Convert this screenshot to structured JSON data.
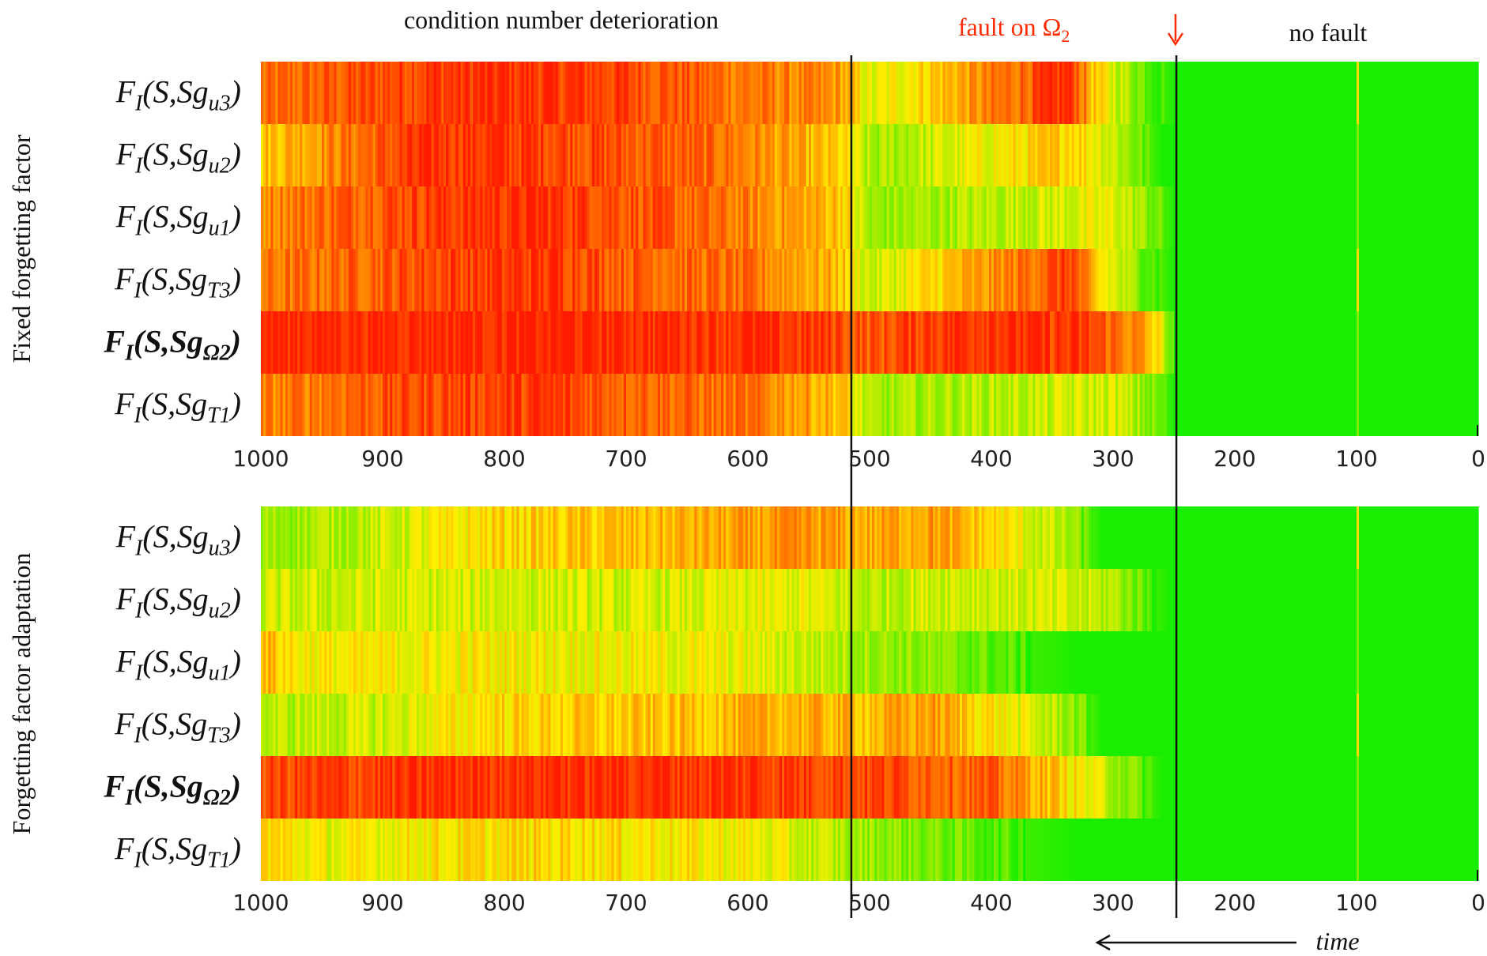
{
  "annotations": {
    "left_top": "condition number deterioration",
    "fault_prefix": "fault on ",
    "fault_symbol": "Ω",
    "fault_subscript": "2",
    "no_fault": "no fault",
    "time": "time"
  },
  "colors": {
    "fault_text": "#ff2a00",
    "highlight_label": "#ff3300",
    "normal_label": "#111111",
    "scale_low": "#00ee00",
    "scale_high": "#ff1a00"
  },
  "chart_data": [
    {
      "type": "heatmap",
      "title": "Fixed forgetting factor",
      "xlim": [
        1000,
        0
      ],
      "x_ticks": [
        "1000",
        "900",
        "800",
        "700",
        "600",
        "500",
        "400",
        "300",
        "200",
        "100",
        "0"
      ],
      "x_tick_values": [
        1000,
        900,
        800,
        700,
        600,
        500,
        400,
        300,
        200,
        100,
        0
      ],
      "marker_lines": [
        515,
        248
      ],
      "rows": [
        {
          "prefix": "F",
          "sub1": "I",
          "middle": "(S,Sg",
          "sub2": "u3",
          "suffix": ")",
          "bold": false,
          "highlight": false,
          "segments": [
            [
              1000,
              0.78
            ],
            [
              935,
              0.85
            ],
            [
              870,
              0.92
            ],
            [
              790,
              0.95
            ],
            [
              700,
              0.9
            ],
            [
              620,
              0.8
            ],
            [
              525,
              0.7
            ],
            [
              500,
              0.42
            ],
            [
              335,
              0.96
            ],
            [
              315,
              0.55
            ],
            [
              285,
              0.3
            ],
            [
              250,
              0.05
            ],
            [
              0,
              0.05
            ]
          ]
        },
        {
          "prefix": "F",
          "sub1": "I",
          "middle": "(S,Sg",
          "sub2": "u2",
          "suffix": ")",
          "bold": false,
          "highlight": false,
          "segments": [
            [
              1000,
              0.6
            ],
            [
              930,
              0.78
            ],
            [
              860,
              0.95
            ],
            [
              770,
              0.92
            ],
            [
              700,
              0.86
            ],
            [
              620,
              0.8
            ],
            [
              525,
              0.55
            ],
            [
              500,
              0.3
            ],
            [
              335,
              0.6
            ],
            [
              300,
              0.4
            ],
            [
              260,
              0.05
            ],
            [
              0,
              0.05
            ]
          ]
        },
        {
          "prefix": "F",
          "sub1": "I",
          "middle": "(S,Sg",
          "sub2": "u1",
          "suffix": ")",
          "bold": false,
          "highlight": false,
          "segments": [
            [
              1000,
              0.75
            ],
            [
              930,
              0.85
            ],
            [
              860,
              0.92
            ],
            [
              780,
              0.96
            ],
            [
              700,
              0.88
            ],
            [
              600,
              0.75
            ],
            [
              525,
              0.62
            ],
            [
              500,
              0.28
            ],
            [
              300,
              0.45
            ],
            [
              265,
              0.22
            ],
            [
              250,
              0.05
            ],
            [
              0,
              0.05
            ]
          ]
        },
        {
          "prefix": "F",
          "sub1": "I",
          "middle": "(S,Sg",
          "sub2": "T3",
          "suffix": ")",
          "bold": false,
          "highlight": false,
          "segments": [
            [
              1000,
              0.76
            ],
            [
              930,
              0.82
            ],
            [
              860,
              0.9
            ],
            [
              760,
              0.94
            ],
            [
              700,
              0.85
            ],
            [
              600,
              0.78
            ],
            [
              525,
              0.62
            ],
            [
              500,
              0.38
            ],
            [
              335,
              0.92
            ],
            [
              315,
              0.55
            ],
            [
              285,
              0.3
            ],
            [
              250,
              0.05
            ],
            [
              0,
              0.05
            ]
          ]
        },
        {
          "prefix": "F",
          "sub1": "I",
          "middle": "(S,Sg",
          "sub2": "Ω2",
          "suffix": ")",
          "bold": true,
          "highlight": false,
          "segments": [
            [
              1000,
              0.98
            ],
            [
              860,
              0.99
            ],
            [
              700,
              0.98
            ],
            [
              600,
              0.96
            ],
            [
              525,
              0.9
            ],
            [
              500,
              0.85
            ],
            [
              450,
              0.94
            ],
            [
              400,
              0.97
            ],
            [
              320,
              0.9
            ],
            [
              280,
              0.72
            ],
            [
              260,
              0.45
            ],
            [
              250,
              0.05
            ],
            [
              0,
              0.05
            ]
          ]
        },
        {
          "prefix": "F",
          "sub1": "I",
          "middle": "(S,Sg",
          "sub2": "T1",
          "suffix": ")",
          "bold": false,
          "highlight": false,
          "segments": [
            [
              1000,
              0.74
            ],
            [
              920,
              0.84
            ],
            [
              850,
              0.9
            ],
            [
              770,
              0.92
            ],
            [
              700,
              0.85
            ],
            [
              600,
              0.78
            ],
            [
              525,
              0.62
            ],
            [
              500,
              0.3
            ],
            [
              300,
              0.42
            ],
            [
              265,
              0.22
            ],
            [
              250,
              0.05
            ],
            [
              0,
              0.05
            ]
          ]
        }
      ]
    },
    {
      "type": "heatmap",
      "title": "Forgetting factor adaptation",
      "xlim": [
        1000,
        0
      ],
      "x_ticks": [
        "1000",
        "900",
        "800",
        "700",
        "600",
        "500",
        "400",
        "300",
        "200",
        "100",
        "0"
      ],
      "x_tick_values": [
        1000,
        900,
        800,
        700,
        600,
        500,
        400,
        300,
        200,
        100,
        0
      ],
      "marker_lines": [
        515,
        248
      ],
      "rows": [
        {
          "prefix": "F",
          "sub1": "I",
          "middle": "(S,Sg",
          "sub2": "u3",
          "suffix": ")",
          "bold": false,
          "highlight": false,
          "segments": [
            [
              1000,
              0.3
            ],
            [
              900,
              0.38
            ],
            [
              810,
              0.55
            ],
            [
              700,
              0.6
            ],
            [
              560,
              0.7
            ],
            [
              500,
              0.65
            ],
            [
              450,
              0.7
            ],
            [
              400,
              0.55
            ],
            [
              335,
              0.3
            ],
            [
              310,
              0.05
            ],
            [
              0,
              0.05
            ]
          ]
        },
        {
          "prefix": "F",
          "sub1": "I",
          "middle": "(S,Sg",
          "sub2": "u2",
          "suffix": ")",
          "bold": false,
          "highlight": false,
          "segments": [
            [
              1000,
              0.38
            ],
            [
              900,
              0.4
            ],
            [
              800,
              0.42
            ],
            [
              700,
              0.4
            ],
            [
              560,
              0.45
            ],
            [
              500,
              0.35
            ],
            [
              450,
              0.42
            ],
            [
              350,
              0.4
            ],
            [
              300,
              0.35
            ],
            [
              255,
              0.05
            ],
            [
              0,
              0.05
            ]
          ]
        },
        {
          "prefix": "F",
          "sub1": "I",
          "middle": "(S,Sg",
          "sub2": "u1",
          "suffix": ")",
          "bold": false,
          "highlight": false,
          "segments": [
            [
              1000,
              0.65
            ],
            [
              970,
              0.5
            ],
            [
              900,
              0.48
            ],
            [
              800,
              0.5
            ],
            [
              700,
              0.48
            ],
            [
              600,
              0.45
            ],
            [
              500,
              0.32
            ],
            [
              420,
              0.22
            ],
            [
              330,
              0.05
            ],
            [
              0,
              0.05
            ]
          ]
        },
        {
          "prefix": "F",
          "sub1": "I",
          "middle": "(S,Sg",
          "sub2": "T3",
          "suffix": ")",
          "bold": false,
          "highlight": false,
          "segments": [
            [
              1000,
              0.35
            ],
            [
              900,
              0.4
            ],
            [
              810,
              0.55
            ],
            [
              700,
              0.58
            ],
            [
              560,
              0.65
            ],
            [
              500,
              0.62
            ],
            [
              450,
              0.7
            ],
            [
              400,
              0.52
            ],
            [
              335,
              0.3
            ],
            [
              310,
              0.05
            ],
            [
              0,
              0.05
            ]
          ]
        },
        {
          "prefix": "F",
          "sub1": "I",
          "middle": "(S,Sg",
          "sub2": "Ω2",
          "suffix": ")",
          "bold": true,
          "highlight": true,
          "segments": [
            [
              1000,
              0.88
            ],
            [
              900,
              0.92
            ],
            [
              800,
              0.97
            ],
            [
              700,
              0.96
            ],
            [
              600,
              0.94
            ],
            [
              500,
              0.9
            ],
            [
              400,
              0.82
            ],
            [
              340,
              0.55
            ],
            [
              300,
              0.35
            ],
            [
              260,
              0.05
            ],
            [
              0,
              0.05
            ]
          ]
        },
        {
          "prefix": "F",
          "sub1": "I",
          "middle": "(S,Sg",
          "sub2": "T1",
          "suffix": ")",
          "bold": false,
          "highlight": false,
          "segments": [
            [
              1000,
              0.58
            ],
            [
              950,
              0.45
            ],
            [
              850,
              0.52
            ],
            [
              750,
              0.55
            ],
            [
              600,
              0.48
            ],
            [
              500,
              0.3
            ],
            [
              420,
              0.2
            ],
            [
              330,
              0.05
            ],
            [
              0,
              0.05
            ]
          ]
        }
      ]
    }
  ]
}
